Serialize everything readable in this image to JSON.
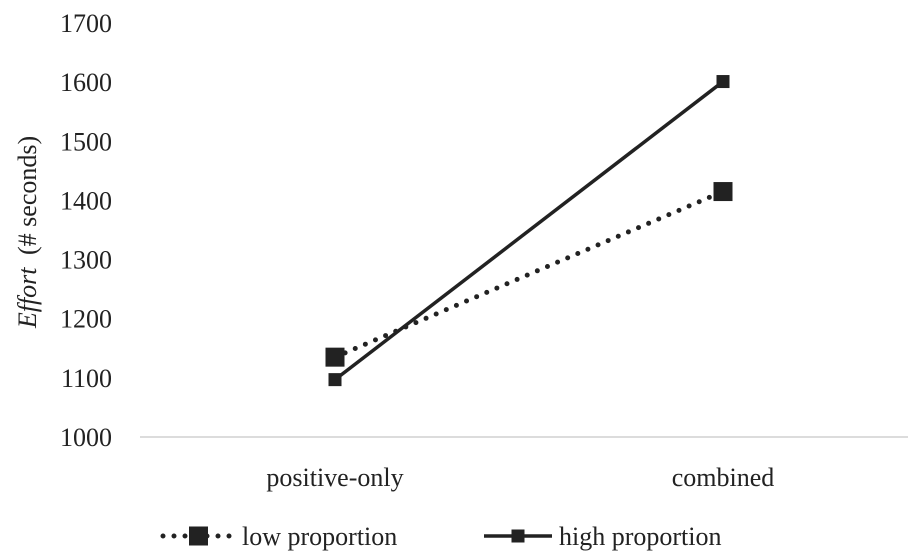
{
  "chart_data": {
    "type": "line",
    "categories": [
      "positive-only",
      "combined"
    ],
    "series": [
      {
        "name": "low proportion",
        "values": [
          1135,
          1415
        ],
        "style": "dotted",
        "marker": "square-large",
        "color": "#222222"
      },
      {
        "name": "high proportion",
        "values": [
          1097,
          1601
        ],
        "style": "solid",
        "marker": "square-small",
        "color": "#222222"
      }
    ],
    "ylabel_italic": "Effort",
    "ylabel_rest": "(# seconds)",
    "ylim": [
      1000,
      1700
    ],
    "yticks": [
      1000,
      1100,
      1200,
      1300,
      1400,
      1500,
      1600,
      1700
    ],
    "grid": false,
    "legend_position": "bottom"
  }
}
